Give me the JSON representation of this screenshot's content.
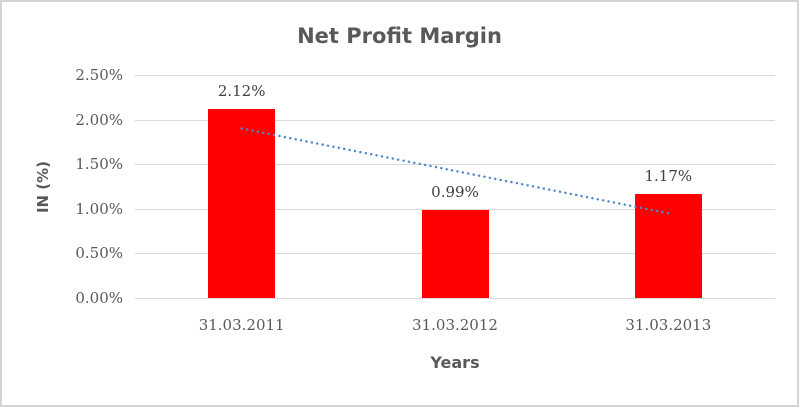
{
  "chart_data": {
    "type": "bar",
    "title": "Net Profit Margin",
    "xlabel": "Years",
    "ylabel": "IN (%)",
    "categories": [
      "31.03.2011",
      "31.03.2012",
      "31.03.2013"
    ],
    "values": [
      2.12,
      0.99,
      1.17
    ],
    "data_labels": [
      "2.12%",
      "0.99%",
      "1.17%"
    ],
    "ylim": [
      0,
      2.5
    ],
    "yticks": [
      0,
      0.5,
      1.0,
      1.5,
      2.0,
      2.5
    ],
    "ytick_labels": [
      "0.00%",
      "0.50%",
      "1.00%",
      "1.50%",
      "2.00%",
      "2.50%"
    ],
    "grid": true,
    "legend": false,
    "bar_color": "#ff0000",
    "gridline_color": "#d9d9d9",
    "text_color": "#595959",
    "data_label_color": "#404040",
    "trendline": {
      "type": "linear",
      "style": "dotted",
      "color": "#4e86c8",
      "start_value": 1.9,
      "end_value": 0.95
    }
  }
}
